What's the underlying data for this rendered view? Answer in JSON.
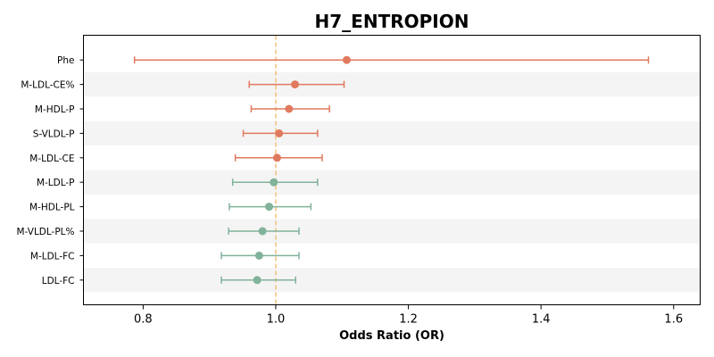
{
  "chart_data": {
    "type": "forest",
    "title": "H7_ENTROPION",
    "xlabel": "Odds Ratio (OR)",
    "xlim": [
      0.71,
      1.64
    ],
    "xticks": [
      0.8,
      1.0,
      1.2,
      1.4,
      1.6
    ],
    "xtick_labels": [
      "0.8",
      "1.0",
      "1.2",
      "1.4",
      "1.6"
    ],
    "reference_line": 1.0,
    "reference_color": "#f4c07a",
    "band_color": "#f4f4f4",
    "grid": false,
    "colors": {
      "positive": "#e07a5f",
      "negative": "#81b29a"
    },
    "rows": [
      {
        "label": "Phe",
        "or": 1.107,
        "lower": 0.787,
        "upper": 1.562,
        "group": "positive"
      },
      {
        "label": "M-LDL-CE%",
        "or": 1.029,
        "lower": 0.96,
        "upper": 1.103,
        "group": "positive"
      },
      {
        "label": "M-HDL-P",
        "or": 1.02,
        "lower": 0.963,
        "upper": 1.081,
        "group": "positive"
      },
      {
        "label": "S-VLDL-P",
        "or": 1.005,
        "lower": 0.951,
        "upper": 1.063,
        "group": "positive"
      },
      {
        "label": "M-LDL-CE",
        "or": 1.002,
        "lower": 0.939,
        "upper": 1.07,
        "group": "positive"
      },
      {
        "label": "M-LDL-P",
        "or": 0.997,
        "lower": 0.935,
        "upper": 1.063,
        "group": "negative"
      },
      {
        "label": "M-HDL-PL",
        "or": 0.99,
        "lower": 0.93,
        "upper": 1.053,
        "group": "negative"
      },
      {
        "label": "M-VLDL-PL%",
        "or": 0.98,
        "lower": 0.929,
        "upper": 1.035,
        "group": "negative"
      },
      {
        "label": "M-LDL-FC",
        "or": 0.975,
        "lower": 0.918,
        "upper": 1.035,
        "group": "negative"
      },
      {
        "label": "LDL-FC",
        "or": 0.972,
        "lower": 0.918,
        "upper": 1.03,
        "group": "negative"
      }
    ]
  }
}
